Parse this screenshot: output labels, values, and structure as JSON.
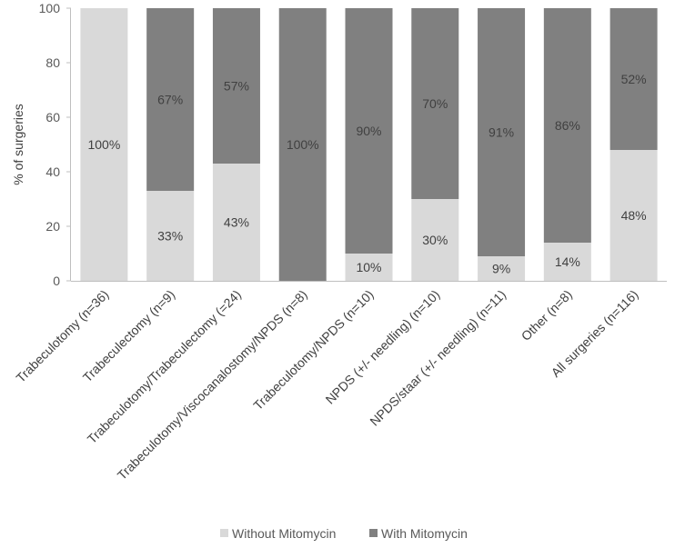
{
  "chart_data": {
    "type": "bar",
    "stacked": true,
    "title": "",
    "xlabel": "",
    "ylabel": "% of surgeries",
    "ylim": [
      0,
      100
    ],
    "yticks": [
      0,
      20,
      40,
      60,
      80,
      100
    ],
    "grid": false,
    "legend_position": "bottom",
    "categories": [
      "Trabeculotomy (n=36)",
      "Trabeculectomy (n=9)",
      "Trabeculotomy/Trabeculectomy (=24)",
      "Trabeculotomy/Viscocanalostomy/NPDS (n=8)",
      "Trabeculotomy/NPDS (n=10)",
      "NPDS (+/- needling) (n=10)",
      "NPDS/staar (+/- needling) (n=11)",
      "Other (n=8)",
      "All surgeries (n=116)"
    ],
    "series": [
      {
        "name": "Without Mitomycin",
        "color": "#d9d9d9",
        "values": [
          100,
          33,
          43,
          0,
          10,
          30,
          9,
          14,
          48
        ],
        "labels": [
          "100%",
          "33%",
          "43%",
          "",
          "10%",
          "30%",
          "9%",
          "14%",
          "48%"
        ]
      },
      {
        "name": "With Mitomycin",
        "color": "#808080",
        "values": [
          0,
          67,
          57,
          100,
          90,
          70,
          91,
          86,
          52
        ],
        "labels": [
          "",
          "67%",
          "57%",
          "100%",
          "90%",
          "70%",
          "91%",
          "86%",
          "52%"
        ]
      }
    ]
  }
}
